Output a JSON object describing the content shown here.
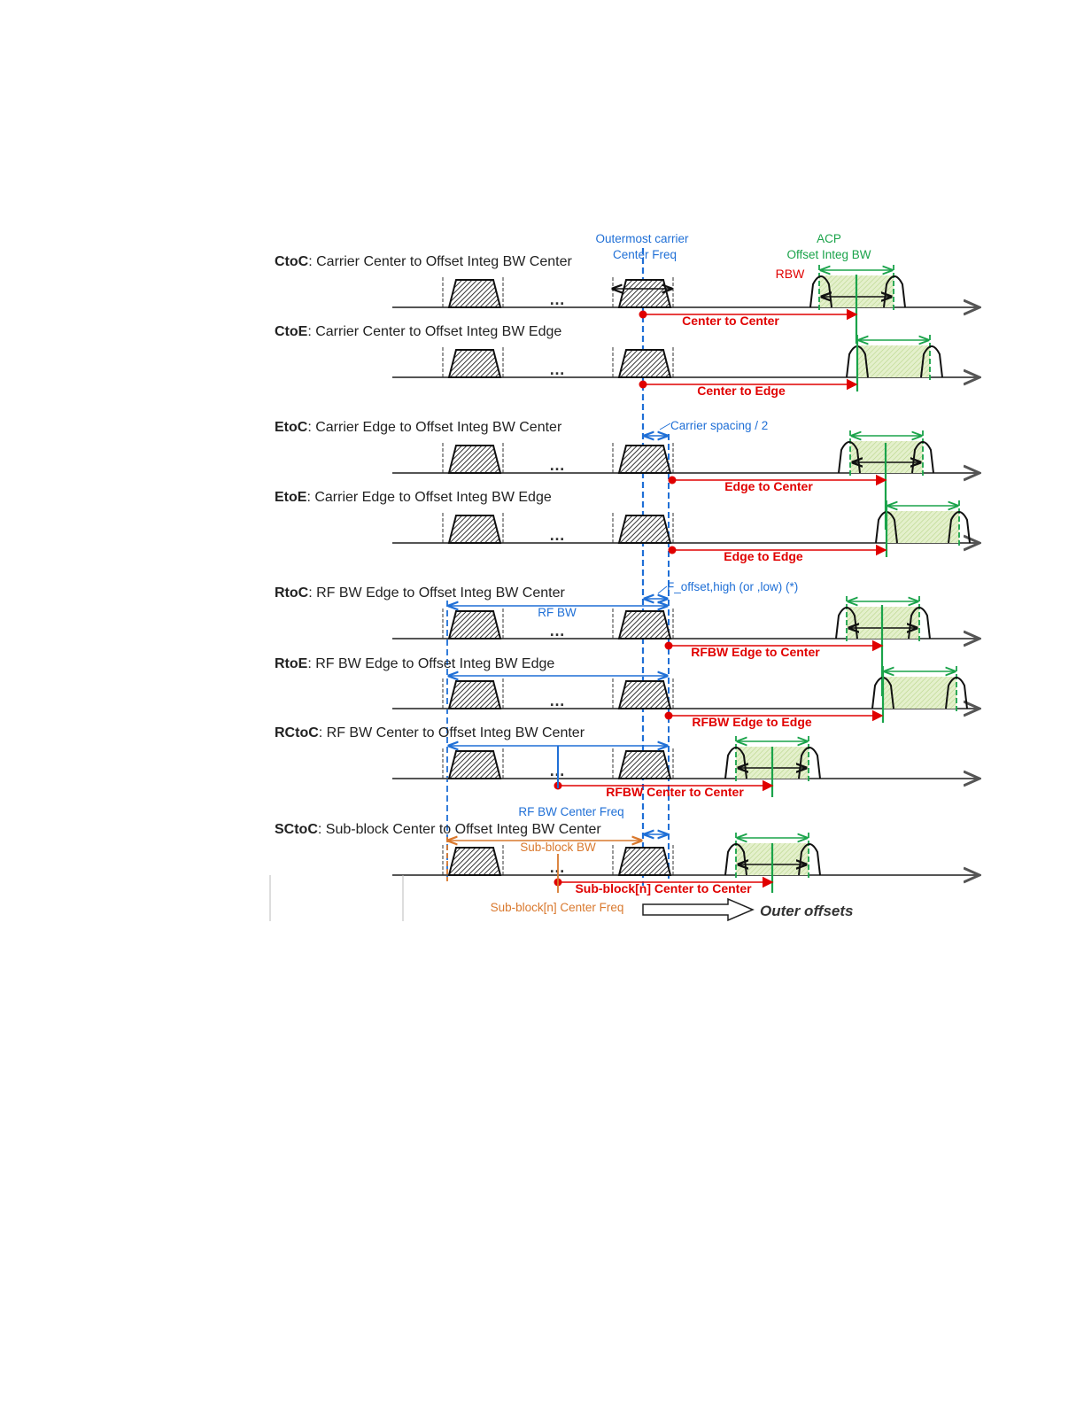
{
  "rows": [
    {
      "key": "CtoC",
      "desc": "Carrier Center to Offset Integ BW Center",
      "measure": "Center to Center"
    },
    {
      "key": "CtoE",
      "desc": "Carrier Center to Offset Integ BW Edge",
      "measure": "Center to Edge"
    },
    {
      "key": "EtoC",
      "desc": "Carrier Edge to Offset Integ BW Center",
      "measure": "Edge to Center"
    },
    {
      "key": "EtoE",
      "desc": "Carrier Edge to Offset Integ BW Edge",
      "measure": "Edge to Edge"
    },
    {
      "key": "RtoC",
      "desc": "RF BW Edge to Offset Integ BW Center",
      "measure": "RFBW Edge to Center"
    },
    {
      "key": "RtoE",
      "desc": "RF BW Edge to Offset Integ BW Edge",
      "measure": "RFBW Edge to Edge"
    },
    {
      "key": "RCtoC",
      "desc": "RF BW Center to Offset Integ BW Center",
      "measure": "RFBW Center to Center"
    },
    {
      "key": "SCtoC",
      "desc": "Sub-block Center to Offset Integ BW Center",
      "measure": "Sub-block[n] Center to Center"
    }
  ],
  "annotations": {
    "outermost_1": "Outermost carrier",
    "outermost_2": "Center Freq",
    "acp_1": "ACP",
    "acp_2": "Offset Integ BW",
    "rbw": "RBW",
    "carrier_spacing": "Carrier spacing / 2",
    "f_offset": "F_offset,high (or ,low) (*)",
    "rf_bw": "RF BW",
    "rf_bw_center": "RF BW Center Freq",
    "subblock_bw": "Sub-block BW",
    "subblock_center": "Sub-block[n] Center Freq",
    "outer_offsets": "Outer offsets",
    "dots": "…"
  },
  "colors": {
    "red": "#e00000",
    "blue": "#1f6fd6",
    "green": "#1aa34a",
    "orange": "#d9782d",
    "axis": "#555555",
    "acp_fill": "#dfeec0"
  }
}
